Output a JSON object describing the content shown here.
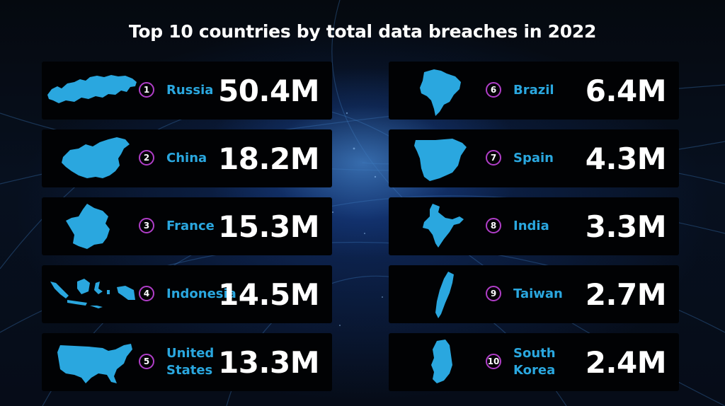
{
  "chart_data": {
    "type": "table",
    "title": "Top 10 countries by total data breaches in 2022",
    "rows": [
      {
        "rank": "1",
        "country": "Russia",
        "value": "50.4M",
        "icon": "russia-map-icon"
      },
      {
        "rank": "2",
        "country": "China",
        "value": "18.2M",
        "icon": "china-map-icon"
      },
      {
        "rank": "3",
        "country": "France",
        "value": "15.3M",
        "icon": "france-map-icon"
      },
      {
        "rank": "4",
        "country": "Indonesia",
        "value": "14.5M",
        "icon": "indonesia-map-icon"
      },
      {
        "rank": "5",
        "country": "United States",
        "value": "13.3M",
        "icon": "united-states-map-icon"
      },
      {
        "rank": "6",
        "country": "Brazil",
        "value": "6.4M",
        "icon": "brazil-map-icon"
      },
      {
        "rank": "7",
        "country": "Spain",
        "value": "4.3M",
        "icon": "spain-map-icon"
      },
      {
        "rank": "8",
        "country": "India",
        "value": "3.3M",
        "icon": "india-map-icon"
      },
      {
        "rank": "9",
        "country": "Taiwan",
        "value": "2.7M",
        "icon": "taiwan-map-icon"
      },
      {
        "rank": "10",
        "country": "South Korea",
        "value": "2.4M",
        "icon": "south-korea-map-icon"
      }
    ]
  },
  "colors": {
    "background": "#07101f",
    "card": "#010204",
    "map": "#2aa7df",
    "country_label": "#2aa7df",
    "badge_ring": "#b03ec8",
    "value": "#ffffff",
    "title": "#ffffff"
  }
}
